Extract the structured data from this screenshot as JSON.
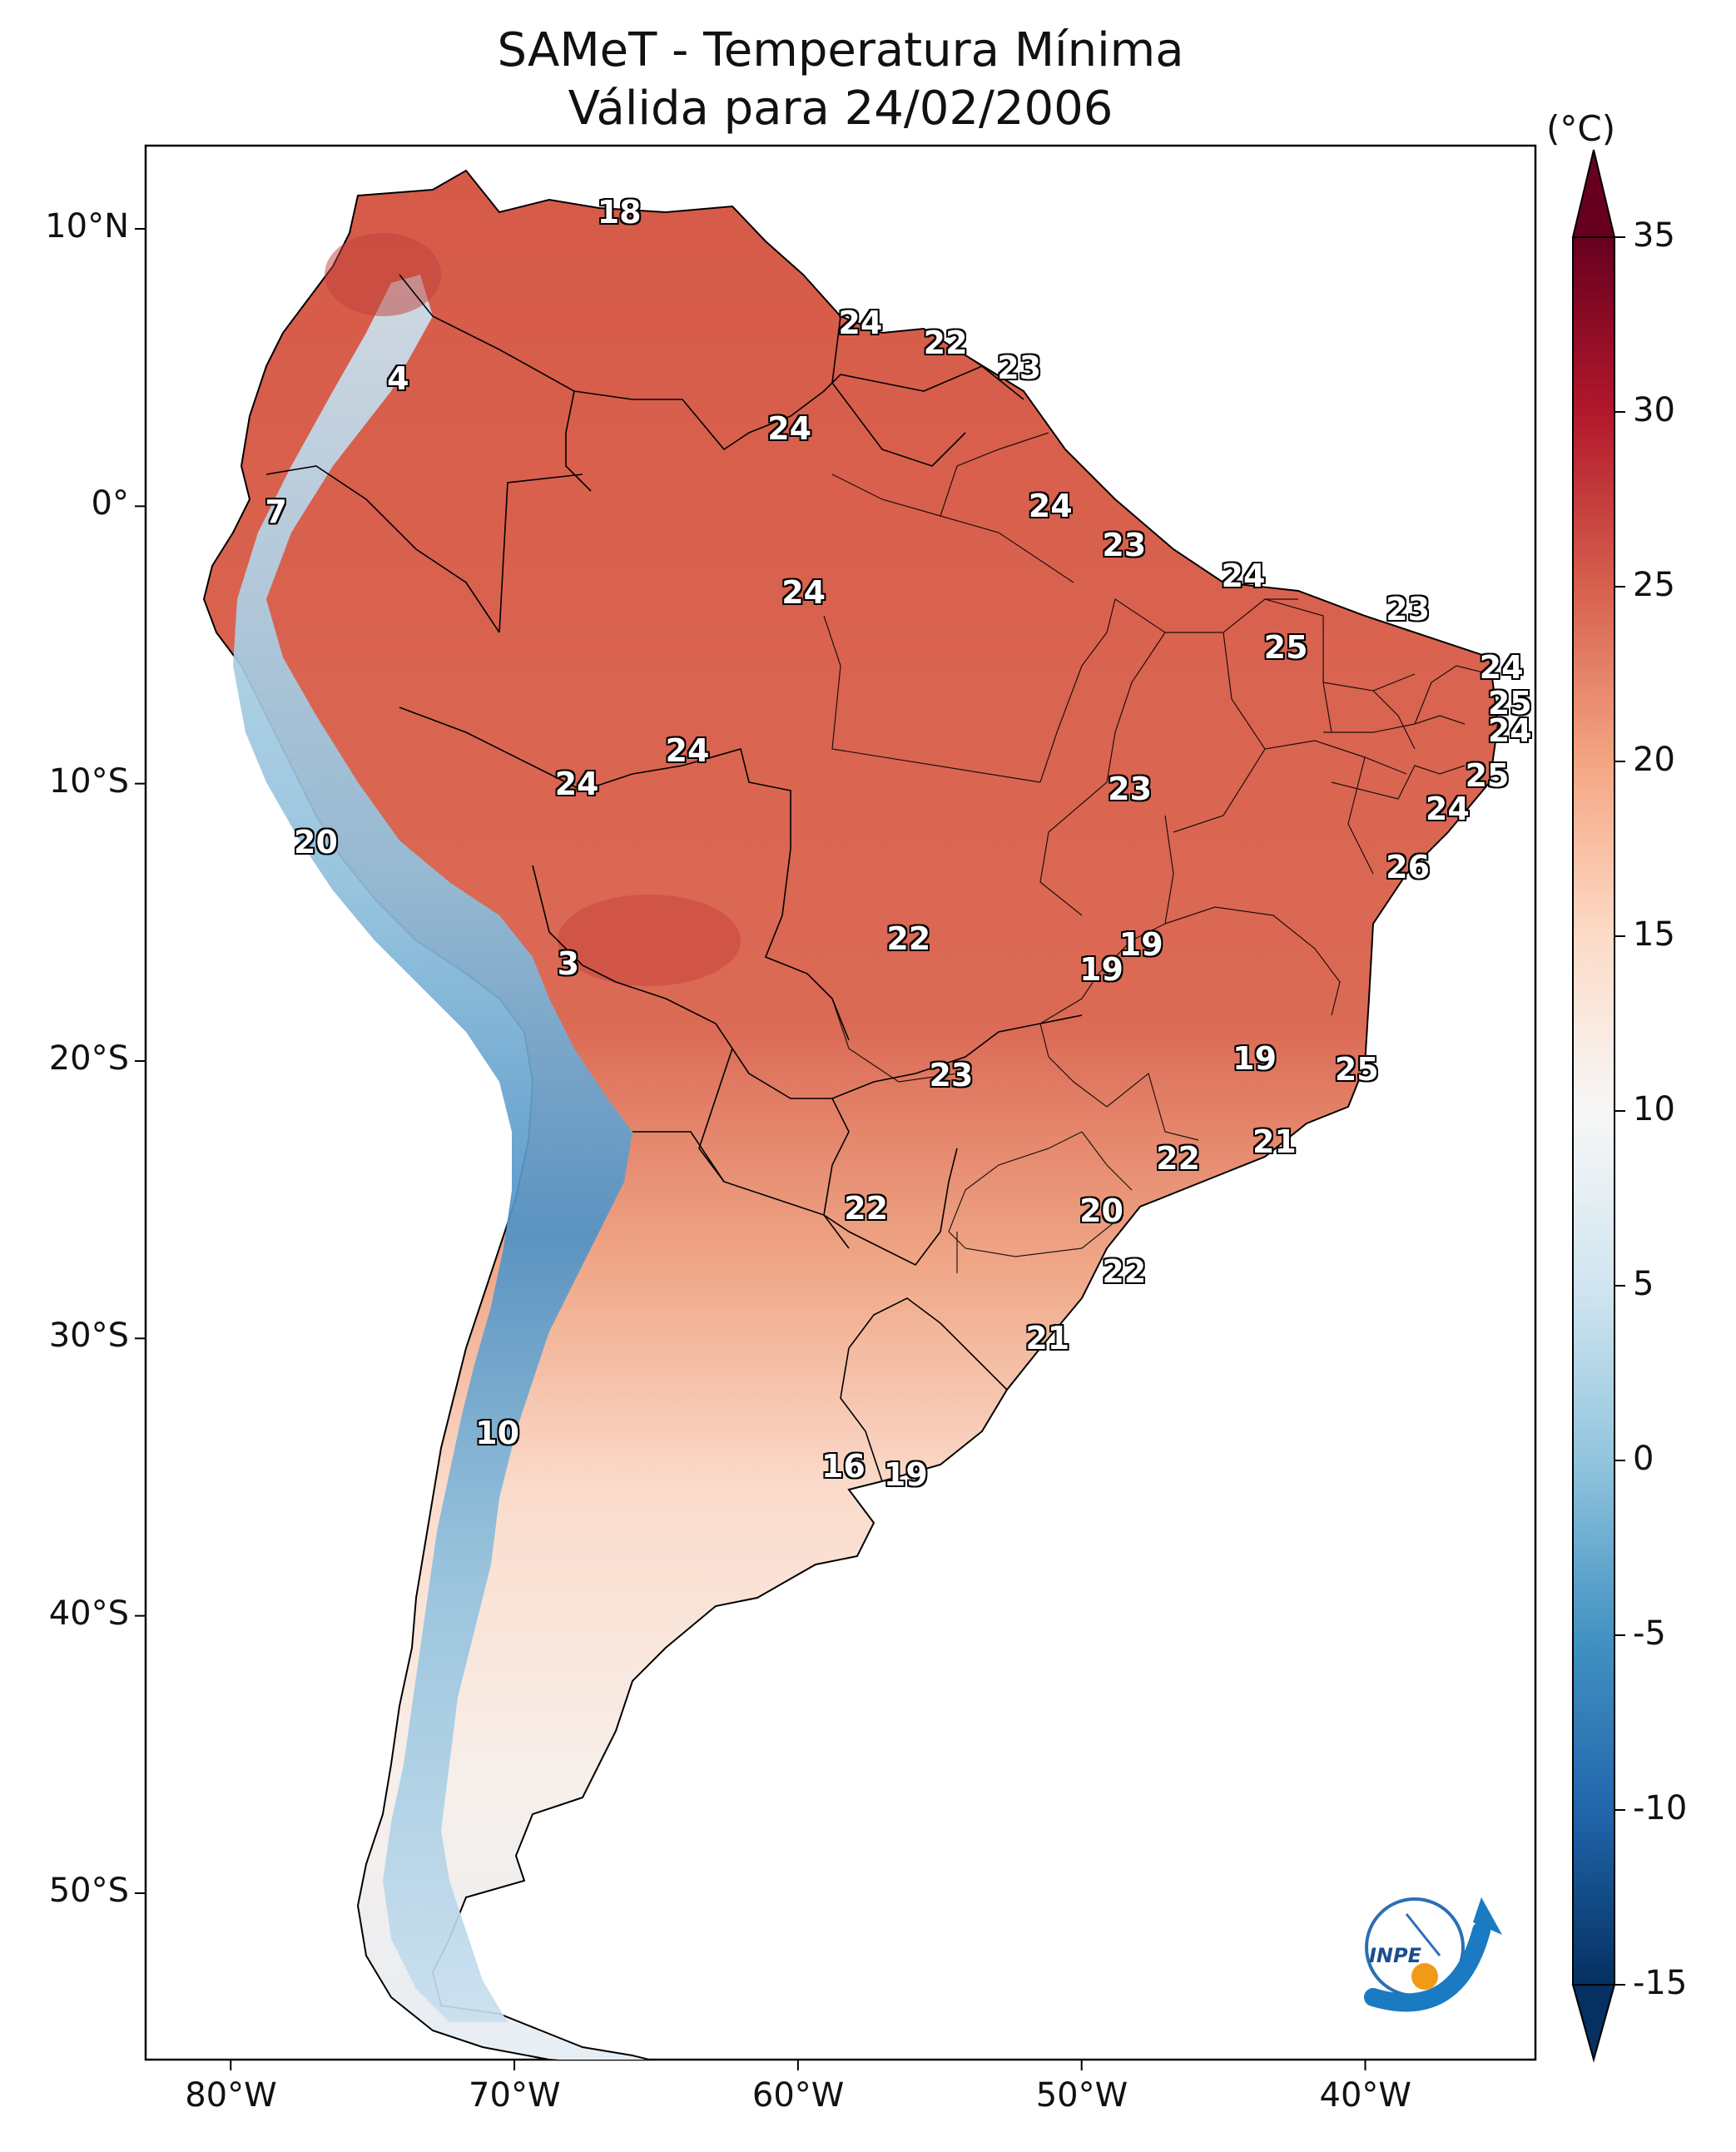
{
  "title": {
    "line1": "SAMeT - Temperatura Mínima",
    "line2": "Válida para 24/02/2006"
  },
  "colorbar": {
    "unit": "(°C)",
    "ticks": [
      "35",
      "30",
      "25",
      "20",
      "15",
      "10",
      "5",
      "0",
      "-5",
      "-10",
      "-15"
    ],
    "min": -15,
    "max": 35,
    "colors": [
      "#053061",
      "#2166ac",
      "#4393c3",
      "#92c5de",
      "#d1e5f0",
      "#f7f7f7",
      "#fddbc7",
      "#f4a582",
      "#d6604d",
      "#b2182b",
      "#67001f"
    ]
  },
  "axes": {
    "lon_ticks": [
      "80°W",
      "70°W",
      "60°W",
      "50°W",
      "40°W"
    ],
    "lat_ticks": [
      "10°N",
      "0°",
      "10°S",
      "20°S",
      "30°S",
      "40°S",
      "50°S"
    ]
  },
  "values": [
    {
      "t": "18",
      "lon": -66.3,
      "lat": 10.6
    },
    {
      "t": "24",
      "lon": -57.8,
      "lat": 6.6
    },
    {
      "t": "22",
      "lon": -54.8,
      "lat": 5.9
    },
    {
      "t": "23",
      "lon": -52.2,
      "lat": 5.0
    },
    {
      "t": "4",
      "lon": -74.1,
      "lat": 4.6
    },
    {
      "t": "24",
      "lon": -60.3,
      "lat": 2.8
    },
    {
      "t": "7",
      "lon": -78.4,
      "lat": -0.2
    },
    {
      "t": "24",
      "lon": -51.1,
      "lat": 0.0
    },
    {
      "t": "23",
      "lon": -48.5,
      "lat": -1.4
    },
    {
      "t": "24",
      "lon": -59.8,
      "lat": -3.1
    },
    {
      "t": "24",
      "lon": -44.3,
      "lat": -2.5
    },
    {
      "t": "23",
      "lon": -38.5,
      "lat": -3.7
    },
    {
      "t": "25",
      "lon": -42.8,
      "lat": -5.1
    },
    {
      "t": "24",
      "lon": -35.2,
      "lat": -5.8
    },
    {
      "t": "25",
      "lon": -34.9,
      "lat": -7.1
    },
    {
      "t": "24",
      "lon": -34.9,
      "lat": -8.1
    },
    {
      "t": "24",
      "lon": -63.9,
      "lat": -8.8
    },
    {
      "t": "25",
      "lon": -35.7,
      "lat": -9.7
    },
    {
      "t": "24",
      "lon": -67.8,
      "lat": -10.0
    },
    {
      "t": "23",
      "lon": -48.3,
      "lat": -10.2
    },
    {
      "t": "24",
      "lon": -37.1,
      "lat": -10.9
    },
    {
      "t": "20",
      "lon": -77.0,
      "lat": -12.1
    },
    {
      "t": "26",
      "lon": -38.5,
      "lat": -13.0
    },
    {
      "t": "19",
      "lon": -47.9,
      "lat": -15.8
    },
    {
      "t": "22",
      "lon": -56.1,
      "lat": -15.6
    },
    {
      "t": "3",
      "lon": -68.1,
      "lat": -16.5
    },
    {
      "t": "19",
      "lon": -49.3,
      "lat": -16.7
    },
    {
      "t": "19",
      "lon": -43.9,
      "lat": -19.9
    },
    {
      "t": "25",
      "lon": -40.3,
      "lat": -20.3
    },
    {
      "t": "23",
      "lon": -54.6,
      "lat": -20.5
    },
    {
      "t": "21",
      "lon": -43.2,
      "lat": -22.9
    },
    {
      "t": "22",
      "lon": -46.6,
      "lat": -23.5
    },
    {
      "t": "22",
      "lon": -57.6,
      "lat": -25.3
    },
    {
      "t": "20",
      "lon": -49.3,
      "lat": -25.4
    },
    {
      "t": "22",
      "lon": -48.5,
      "lat": -27.6
    },
    {
      "t": "21",
      "lon": -51.2,
      "lat": -30.0
    },
    {
      "t": "10",
      "lon": -70.6,
      "lat": -33.4
    },
    {
      "t": "16",
      "lon": -58.4,
      "lat": -34.6
    },
    {
      "t": "19",
      "lon": -56.2,
      "lat": -34.9
    }
  ]
}
